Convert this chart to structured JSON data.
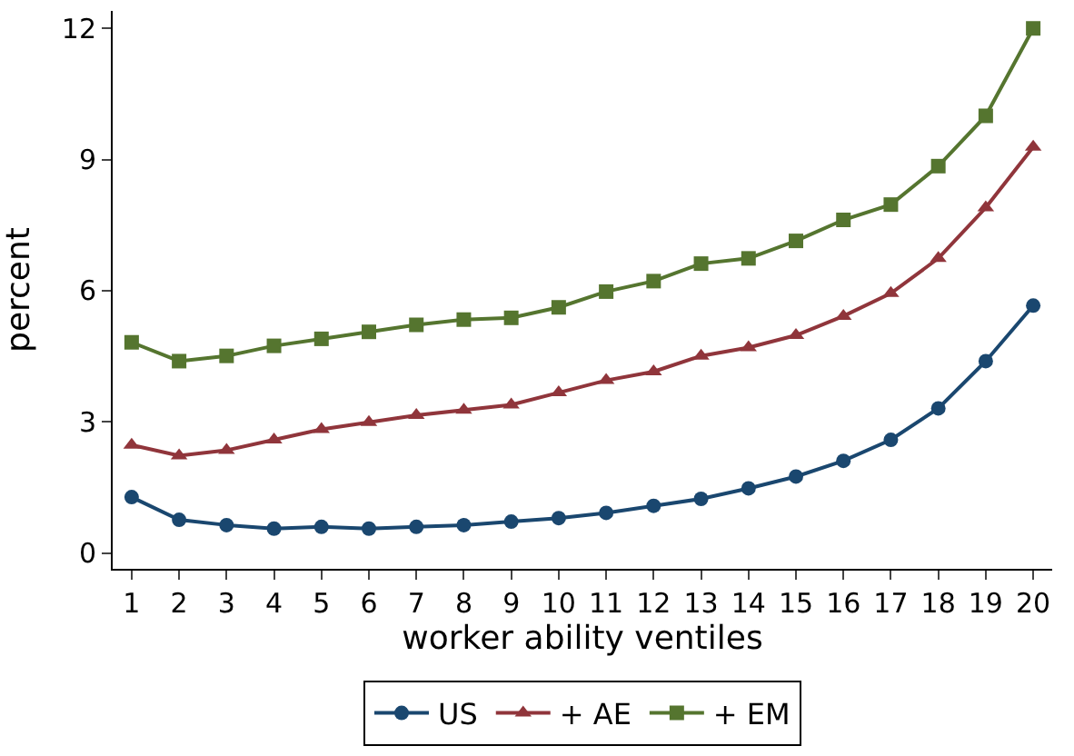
{
  "chart_data": {
    "type": "line",
    "xlabel": "worker ability ventiles",
    "ylabel": "percent",
    "x": [
      1,
      2,
      3,
      4,
      5,
      6,
      7,
      8,
      9,
      10,
      11,
      12,
      13,
      14,
      15,
      16,
      17,
      18,
      19,
      20
    ],
    "xlim": [
      0.6,
      20.4
    ],
    "xticks": [
      1,
      2,
      3,
      4,
      5,
      6,
      7,
      8,
      9,
      10,
      11,
      12,
      13,
      14,
      15,
      16,
      17,
      18,
      19,
      20
    ],
    "ylim": [
      -0.36,
      12.4
    ],
    "yticks": [
      0,
      3,
      6,
      9,
      12
    ],
    "grid": false,
    "legend": "bottom",
    "series": [
      {
        "name": "US",
        "color": "#1a476f",
        "marker": "circle",
        "values": [
          1.28,
          0.76,
          0.64,
          0.56,
          0.6,
          0.56,
          0.6,
          0.64,
          0.72,
          0.8,
          0.92,
          1.08,
          1.24,
          1.48,
          1.75,
          2.11,
          2.59,
          3.31,
          4.39,
          5.66
        ]
      },
      {
        "name": "+ AE",
        "color": "#90353b",
        "marker": "triangle",
        "values": [
          2.47,
          2.23,
          2.35,
          2.59,
          2.83,
          2.99,
          3.15,
          3.27,
          3.39,
          3.67,
          3.95,
          4.15,
          4.51,
          4.7,
          4.98,
          5.42,
          5.94,
          6.74,
          7.9,
          9.29
        ]
      },
      {
        "name": "+ EM",
        "color": "#55752f",
        "marker": "square",
        "values": [
          4.82,
          4.39,
          4.51,
          4.74,
          4.9,
          5.06,
          5.22,
          5.34,
          5.38,
          5.62,
          5.98,
          6.22,
          6.62,
          6.74,
          7.14,
          7.62,
          7.97,
          8.85,
          10.0,
          12.0
        ]
      }
    ]
  }
}
